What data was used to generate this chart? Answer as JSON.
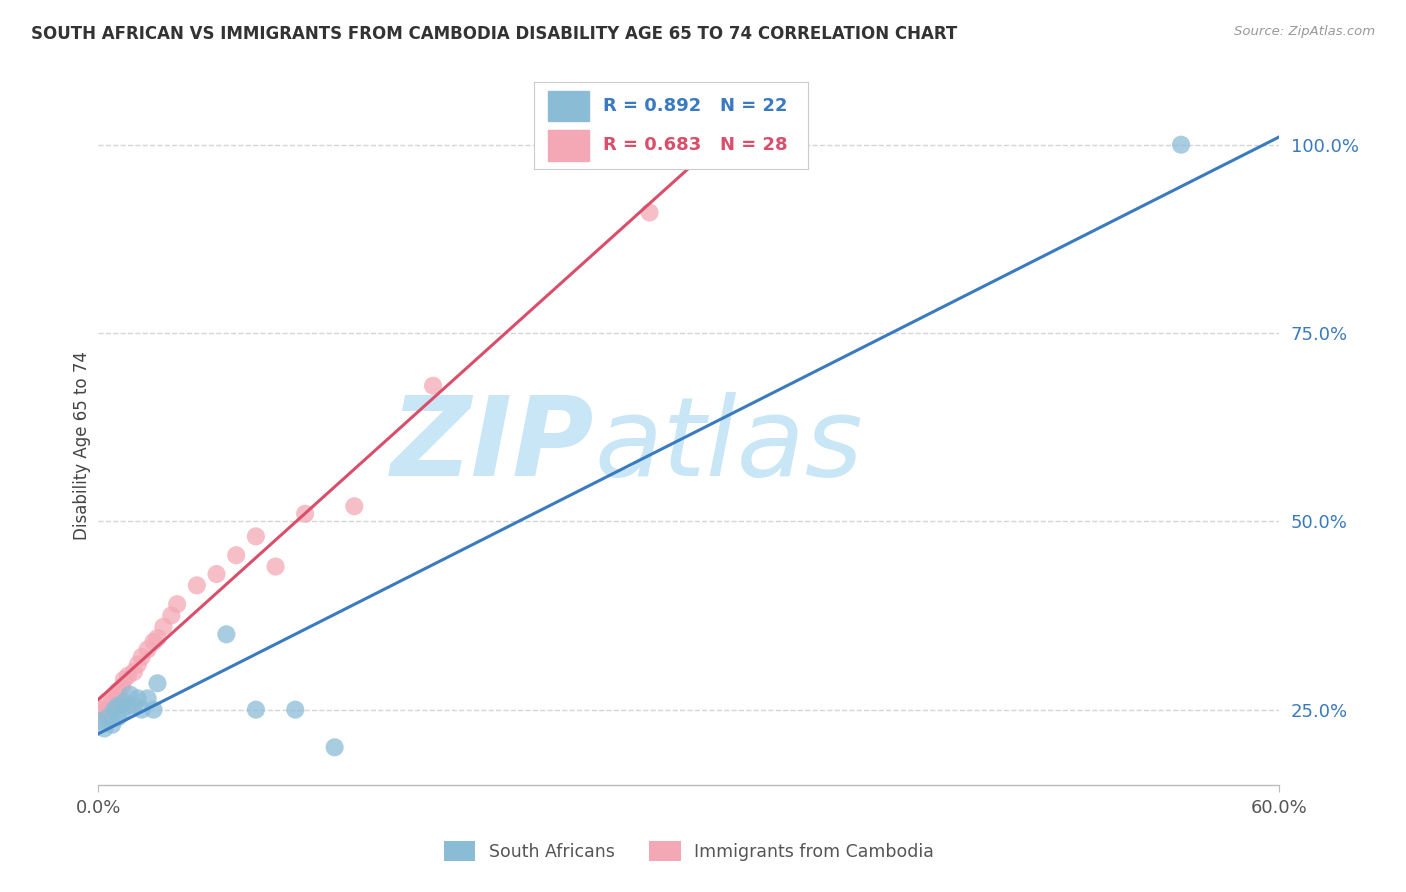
{
  "title": "SOUTH AFRICAN VS IMMIGRANTS FROM CAMBODIA DISABILITY AGE 65 TO 74 CORRELATION CHART",
  "source": "Source: ZipAtlas.com",
  "ylabel": "Disability Age 65 to 74",
  "xlim": [
    0.0,
    0.6
  ],
  "ylim": [
    0.15,
    1.05
  ],
  "ytick_labels": [
    "25.0%",
    "50.0%",
    "75.0%",
    "100.0%"
  ],
  "ytick_vals": [
    0.25,
    0.5,
    0.75,
    1.0
  ],
  "xtick_labels": [
    "0.0%",
    "60.0%"
  ],
  "xtick_vals": [
    0.0,
    0.6
  ],
  "r_sa": 0.892,
  "n_sa": 22,
  "r_cam": 0.683,
  "n_cam": 28,
  "color_sa": "#8bbcd6",
  "color_cam": "#f4a8b5",
  "line_color_sa": "#3a7abf",
  "line_color_cam": "#d94f6a",
  "watermark_zip": "ZIP",
  "watermark_atlas": "atlas",
  "watermark_color": "#c8e6f5",
  "sa_x": [
    0.0,
    0.003,
    0.005,
    0.007,
    0.008,
    0.01,
    0.01,
    0.012,
    0.013,
    0.015,
    0.016,
    0.018,
    0.02,
    0.022,
    0.025,
    0.028,
    0.03,
    0.065,
    0.08,
    0.1,
    0.12,
    0.55
  ],
  "sa_y": [
    0.235,
    0.225,
    0.24,
    0.23,
    0.25,
    0.24,
    0.255,
    0.245,
    0.26,
    0.255,
    0.27,
    0.255,
    0.265,
    0.25,
    0.265,
    0.25,
    0.285,
    0.35,
    0.25,
    0.25,
    0.2,
    1.0
  ],
  "cam_x": [
    0.0,
    0.002,
    0.004,
    0.005,
    0.007,
    0.009,
    0.01,
    0.012,
    0.013,
    0.015,
    0.018,
    0.02,
    0.022,
    0.025,
    0.028,
    0.03,
    0.033,
    0.037,
    0.04,
    0.05,
    0.06,
    0.07,
    0.08,
    0.09,
    0.105,
    0.13,
    0.17,
    0.28
  ],
  "cam_y": [
    0.245,
    0.25,
    0.26,
    0.25,
    0.265,
    0.27,
    0.275,
    0.28,
    0.29,
    0.295,
    0.3,
    0.31,
    0.32,
    0.33,
    0.34,
    0.345,
    0.36,
    0.375,
    0.39,
    0.415,
    0.43,
    0.455,
    0.48,
    0.44,
    0.51,
    0.52,
    0.68,
    0.91
  ],
  "background_color": "#ffffff",
  "grid_color": "#d5d5d5"
}
